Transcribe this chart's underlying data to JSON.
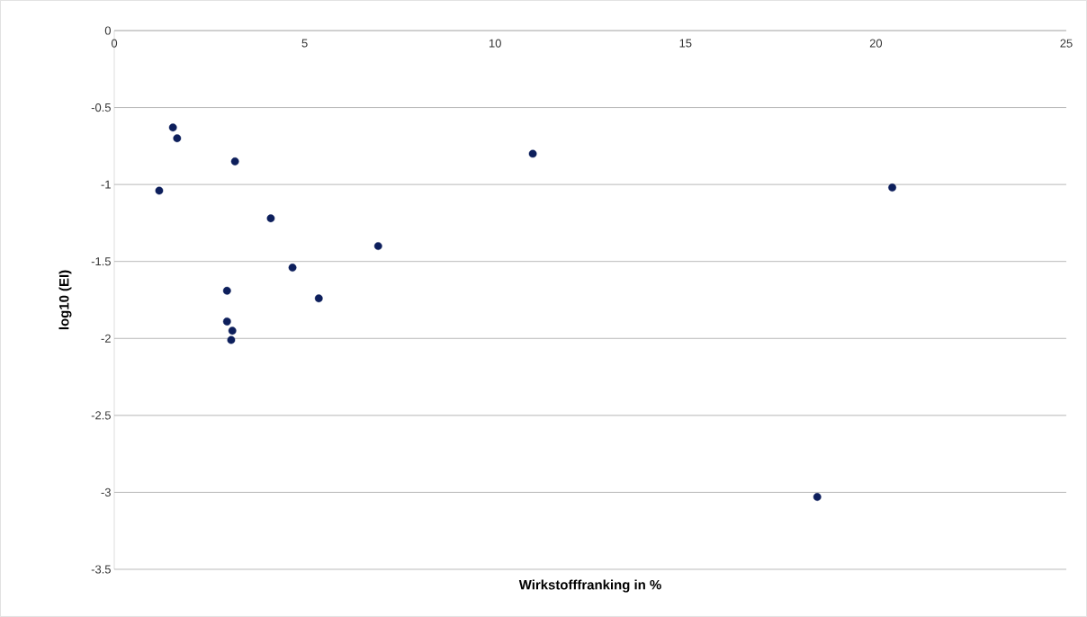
{
  "chart_data": {
    "type": "scatter",
    "xlabel": "Wirkstofffranking in %",
    "ylabel": "log10 (EI)",
    "x": [
      1.54,
      1.65,
      1.18,
      3.17,
      4.11,
      2.96,
      2.96,
      3.1,
      3.07,
      4.68,
      5.37,
      6.93,
      10.99,
      20.43,
      18.46
    ],
    "values": [
      -0.63,
      -0.7,
      -1.04,
      -0.85,
      -1.22,
      -1.69,
      -1.89,
      -1.95,
      -2.01,
      -1.54,
      -1.74,
      -1.4,
      -0.8,
      -1.02,
      -3.03
    ],
    "color": "#0d1f5c",
    "marker": "circle",
    "xlim": [
      0,
      25
    ],
    "xticks": [
      0,
      5,
      10,
      15,
      20,
      25
    ],
    "ylim": [
      -3.5,
      0
    ],
    "yticks": [
      0,
      -0.5,
      -1,
      -1.5,
      -2,
      -2.5,
      -3,
      -3.5
    ],
    "grid": "y"
  }
}
